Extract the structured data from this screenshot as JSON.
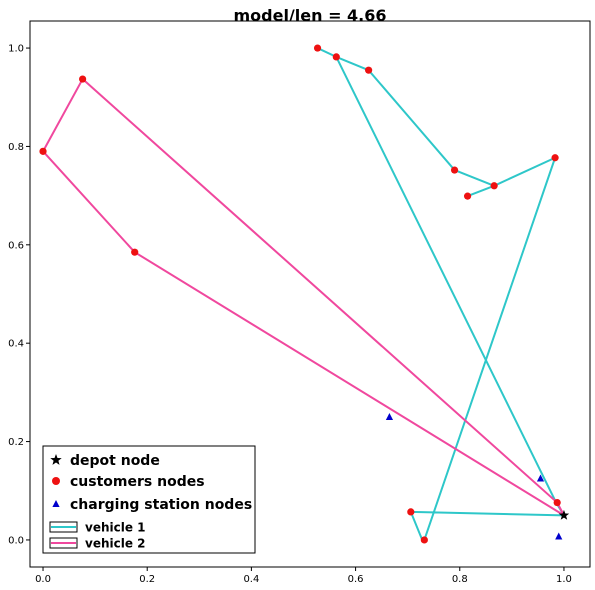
{
  "chart_data": {
    "type": "scatter",
    "title": "model/len = 4.66",
    "xlabel": "",
    "ylabel": "",
    "xlim": [
      -0.025,
      1.05
    ],
    "ylim": [
      -0.055,
      1.055
    ],
    "xticks": [
      0.0,
      0.2,
      0.4,
      0.6,
      0.8,
      1.0
    ],
    "yticks": [
      0.0,
      0.2,
      0.4,
      0.6,
      0.8,
      1.0
    ],
    "tick_labels_x": [
      "0.0",
      "0.2",
      "0.4",
      "0.6",
      "0.8",
      "1.0"
    ],
    "tick_labels_y": [
      "0.0",
      "0.2",
      "0.4",
      "0.6",
      "0.8",
      "1.0"
    ],
    "grid": false,
    "legend_position": "bottom-left",
    "depot": {
      "name": "depot node",
      "x": 1.0,
      "y": 0.05,
      "color": "#000000"
    },
    "customers": {
      "name": "customers nodes",
      "color": "#ee1111",
      "points": [
        {
          "x": 0.527,
          "y": 1.0
        },
        {
          "x": 0.563,
          "y": 0.982
        },
        {
          "x": 0.625,
          "y": 0.955
        },
        {
          "x": 0.79,
          "y": 0.752
        },
        {
          "x": 0.866,
          "y": 0.72
        },
        {
          "x": 0.815,
          "y": 0.699
        },
        {
          "x": 0.983,
          "y": 0.777
        },
        {
          "x": 0.732,
          "y": 0.0
        },
        {
          "x": 0.706,
          "y": 0.057
        },
        {
          "x": 0.987,
          "y": 0.076
        },
        {
          "x": 0.076,
          "y": 0.937
        },
        {
          "x": 0.0,
          "y": 0.79
        },
        {
          "x": 0.176,
          "y": 0.585
        }
      ]
    },
    "charging_stations": {
      "name": "charging station nodes",
      "color": "#0000cc",
      "points": [
        {
          "x": 0.665,
          "y": 0.25
        },
        {
          "x": 0.955,
          "y": 0.125
        },
        {
          "x": 0.99,
          "y": 0.007
        }
      ]
    },
    "series": [
      {
        "name": "vehicle 1",
        "color": "#2ec7c9",
        "x": [
          1.0,
          0.985,
          0.563,
          0.527,
          0.563,
          0.625,
          0.79,
          0.866,
          0.815,
          0.866,
          0.983,
          0.732,
          0.728,
          0.706,
          1.0
        ],
        "y": [
          0.05,
          0.076,
          0.982,
          1.0,
          0.982,
          0.955,
          0.752,
          0.72,
          0.699,
          0.72,
          0.777,
          0.0,
          0.0,
          0.057,
          0.05
        ]
      },
      {
        "name": "vehicle 2",
        "color": "#f0489e",
        "x": [
          1.0,
          0.176,
          0.0,
          0.076,
          0.987,
          1.0
        ],
        "y": [
          0.05,
          0.585,
          0.79,
          0.937,
          0.076,
          0.05
        ]
      }
    ]
  }
}
